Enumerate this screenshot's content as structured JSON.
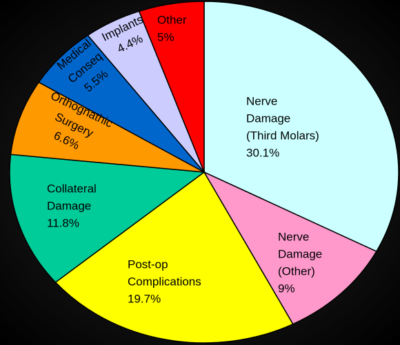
{
  "chart_data": {
    "type": "pie",
    "categories": [
      [
        "Nerve",
        "Damage",
        "(Third Molars)"
      ],
      [
        "Nerve",
        "Damage",
        "(Other)"
      ],
      [
        "Post-op",
        "Complications"
      ],
      [
        "Collateral",
        "Damage"
      ],
      [
        "Orthognathic",
        "Surgery"
      ],
      [
        "Medical",
        "Conseq"
      ],
      [
        "Implants"
      ],
      [
        "Other"
      ]
    ],
    "values": [
      30.1,
      9,
      19.7,
      11.8,
      6.6,
      5.5,
      4.4,
      5
    ],
    "value_labels": [
      "30.1%",
      "9%",
      "19.7%",
      "11.8%",
      "6.6%",
      "5.5%",
      "4.4%",
      "5%"
    ],
    "colors": [
      "#ccffff",
      "#ff99cc",
      "#ffff00",
      "#00cc99",
      "#ff9900",
      "#0066cc",
      "#ccccff",
      "#ff0000"
    ]
  }
}
